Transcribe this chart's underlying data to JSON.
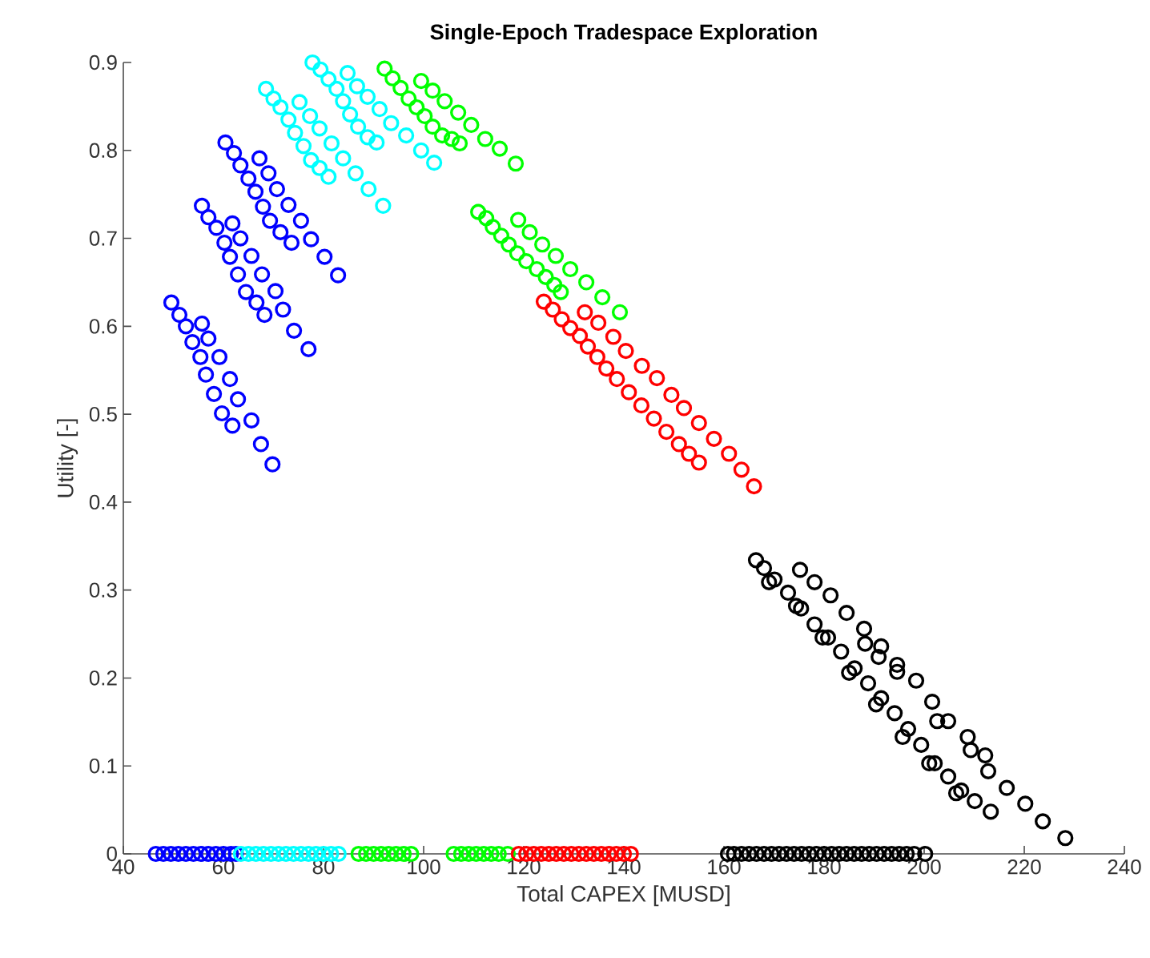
{
  "chart_data": {
    "type": "scatter",
    "title": "Single-Epoch Tradespace Exploration",
    "xlabel": "Total CAPEX [MUSD]",
    "ylabel": "Utility [-]",
    "xlim": [
      40,
      240
    ],
    "ylim": [
      0,
      0.9
    ],
    "xticks": [
      40,
      60,
      80,
      100,
      120,
      140,
      160,
      180,
      200,
      220,
      240
    ],
    "yticks": [
      0,
      0.1,
      0.2,
      0.3,
      0.4,
      0.5,
      0.6,
      0.7,
      0.8,
      0.9
    ],
    "grid": false,
    "marker": "circle",
    "series": [
      {
        "color": "#0000ff",
        "x": [
          49.6,
          51.2,
          52.5,
          55.7,
          53.8,
          57.0,
          55.4,
          59.2,
          56.5,
          61.3,
          58.1,
          62.9,
          59.7,
          61.8,
          65.6,
          67.5,
          69.8,
          55.7,
          57.0,
          58.6,
          61.8,
          60.2,
          63.4,
          61.3,
          65.6,
          62.9,
          67.7,
          64.5,
          70.4,
          66.6,
          68.2,
          71.9,
          74.1,
          77.0,
          60.4,
          62.1,
          63.4,
          67.2,
          65.0,
          69.0,
          66.4,
          70.7,
          67.9,
          73.0,
          69.3,
          75.5,
          71.4,
          73.6,
          77.5,
          80.2,
          82.9,
          46.5,
          48,
          49.5,
          51,
          52.5,
          54,
          55.5,
          57,
          58.5,
          60,
          61.5,
          62.5
        ],
        "values": [
          0.627,
          0.613,
          0.6,
          0.603,
          0.582,
          0.586,
          0.565,
          0.565,
          0.545,
          0.54,
          0.523,
          0.517,
          0.501,
          0.487,
          0.493,
          0.466,
          0.443,
          0.737,
          0.724,
          0.712,
          0.717,
          0.695,
          0.7,
          0.679,
          0.68,
          0.659,
          0.659,
          0.639,
          0.64,
          0.627,
          0.613,
          0.619,
          0.595,
          0.574,
          0.809,
          0.797,
          0.783,
          0.791,
          0.768,
          0.774,
          0.753,
          0.756,
          0.736,
          0.738,
          0.72,
          0.72,
          0.707,
          0.695,
          0.699,
          0.679,
          0.658,
          0,
          0,
          0,
          0,
          0,
          0,
          0,
          0,
          0,
          0,
          0,
          0
        ]
      },
      {
        "color": "#00ffff",
        "x": [
          68.5,
          70.0,
          71.4,
          75.2,
          73.0,
          77.3,
          74.3,
          79.2,
          76.0,
          81.6,
          77.5,
          83.9,
          79.2,
          81.0,
          86.4,
          89.0,
          91.9,
          77.8,
          79.4,
          81.0,
          84.8,
          82.6,
          86.7,
          83.9,
          88.8,
          85.3,
          91.2,
          86.9,
          93.5,
          88.8,
          90.6,
          96.5,
          99.5,
          102.1,
          63.5,
          65,
          66.5,
          68,
          69.5,
          71,
          72.5,
          74,
          75.5,
          77,
          78.5,
          80,
          81.5,
          83
        ],
        "values": [
          0.87,
          0.859,
          0.849,
          0.855,
          0.835,
          0.839,
          0.82,
          0.825,
          0.805,
          0.808,
          0.789,
          0.791,
          0.78,
          0.77,
          0.774,
          0.756,
          0.737,
          0.9,
          0.892,
          0.881,
          0.888,
          0.87,
          0.873,
          0.856,
          0.861,
          0.841,
          0.847,
          0.827,
          0.831,
          0.815,
          0.809,
          0.817,
          0.8,
          0.786,
          0,
          0,
          0,
          0,
          0,
          0,
          0,
          0,
          0,
          0,
          0,
          0,
          0,
          0
        ]
      },
      {
        "color": "#00ff00",
        "x": [
          92.2,
          93.8,
          95.4,
          99.5,
          97.0,
          101.8,
          98.6,
          104.2,
          100.2,
          106.9,
          101.8,
          109.5,
          103.7,
          105.6,
          107.2,
          112.3,
          115.2,
          118.4,
          110.9,
          112.5,
          113.8,
          118.9,
          115.5,
          121.2,
          117.0,
          123.7,
          118.7,
          126.4,
          120.5,
          129.3,
          122.6,
          124.4,
          126.1,
          127.4,
          132.5,
          135.7,
          139.2,
          87,
          88.5,
          90,
          91.5,
          93,
          94.5,
          96,
          97.5,
          106,
          107.5,
          109,
          110.5,
          112,
          113.5,
          115,
          116.8
        ],
        "values": [
          0.893,
          0.882,
          0.871,
          0.879,
          0.859,
          0.868,
          0.849,
          0.856,
          0.839,
          0.843,
          0.827,
          0.829,
          0.817,
          0.813,
          0.808,
          0.813,
          0.802,
          0.785,
          0.73,
          0.723,
          0.713,
          0.721,
          0.703,
          0.707,
          0.693,
          0.693,
          0.683,
          0.68,
          0.674,
          0.665,
          0.665,
          0.656,
          0.647,
          0.639,
          0.65,
          0.633,
          0.616,
          0,
          0,
          0,
          0,
          0,
          0,
          0,
          0,
          0,
          0,
          0,
          0,
          0,
          0,
          0,
          0
        ]
      },
      {
        "color": "#ff0000",
        "x": [
          124.0,
          125.8,
          127.6,
          132.2,
          129.3,
          134.9,
          131.2,
          137.9,
          132.8,
          140.4,
          134.7,
          143.6,
          136.5,
          146.6,
          138.6,
          141,
          143.5,
          146,
          148.5,
          151,
          153,
          155,
          149.5,
          152,
          155,
          158,
          161,
          163.5,
          166,
          119,
          120.5,
          122,
          123.5,
          125,
          126.5,
          128,
          129.5,
          131,
          132.5,
          134,
          135.5,
          137,
          138.5,
          140,
          141.4
        ],
        "values": [
          0.628,
          0.619,
          0.608,
          0.616,
          0.598,
          0.604,
          0.589,
          0.588,
          0.577,
          0.572,
          0.565,
          0.555,
          0.552,
          0.541,
          0.54,
          0.525,
          0.51,
          0.495,
          0.48,
          0.466,
          0.455,
          0.445,
          0.522,
          0.507,
          0.49,
          0.472,
          0.455,
          0.437,
          0.418,
          0,
          0,
          0,
          0,
          0,
          0,
          0,
          0,
          0,
          0,
          0,
          0,
          0,
          0,
          0,
          0
        ]
      },
      {
        "color": "#000000",
        "x": [
          166.4,
          168.0,
          170.1,
          172.8,
          175.4,
          178.1,
          180.8,
          183.4,
          186.1,
          188.8,
          191.4,
          194.1,
          196.8,
          199.4,
          202.1,
          204.8,
          207.4,
          210.1,
          213.3,
          169.0,
          174.4,
          179.7,
          185.0,
          190.4,
          195.7,
          201.0,
          206.4,
          175.2,
          178.1,
          181.3,
          184.5,
          188.0,
          191.4,
          194.6,
          198.4,
          201.6,
          204.8,
          208.7,
          212.2,
          216.5,
          220.2,
          223.7,
          228.2,
          188.2,
          190.9,
          194.6,
          202.6,
          209.3,
          212.8,
          160.8,
          162,
          163.5,
          165,
          166.5,
          168,
          169.5,
          171,
          172.5,
          174,
          175.5,
          177,
          178.5,
          180,
          181.5,
          183,
          184.5,
          186,
          187.5,
          189,
          190.5,
          192,
          193.5,
          195,
          196.5,
          198,
          200.2
        ],
        "values": [
          0.334,
          0.325,
          0.312,
          0.297,
          0.279,
          0.261,
          0.246,
          0.23,
          0.211,
          0.194,
          0.177,
          0.16,
          0.142,
          0.124,
          0.103,
          0.088,
          0.072,
          0.06,
          0.048,
          0.309,
          0.282,
          0.246,
          0.206,
          0.17,
          0.133,
          0.103,
          0.069,
          0.323,
          0.309,
          0.294,
          0.274,
          0.256,
          0.236,
          0.215,
          0.197,
          0.173,
          0.151,
          0.133,
          0.112,
          0.075,
          0.057,
          0.037,
          0.018,
          0.239,
          0.224,
          0.207,
          0.151,
          0.118,
          0.094,
          0,
          0,
          0,
          0,
          0,
          0,
          0,
          0,
          0,
          0,
          0,
          0,
          0,
          0,
          0,
          0,
          0,
          0,
          0,
          0,
          0,
          0,
          0,
          0,
          0,
          0,
          0
        ]
      }
    ]
  }
}
